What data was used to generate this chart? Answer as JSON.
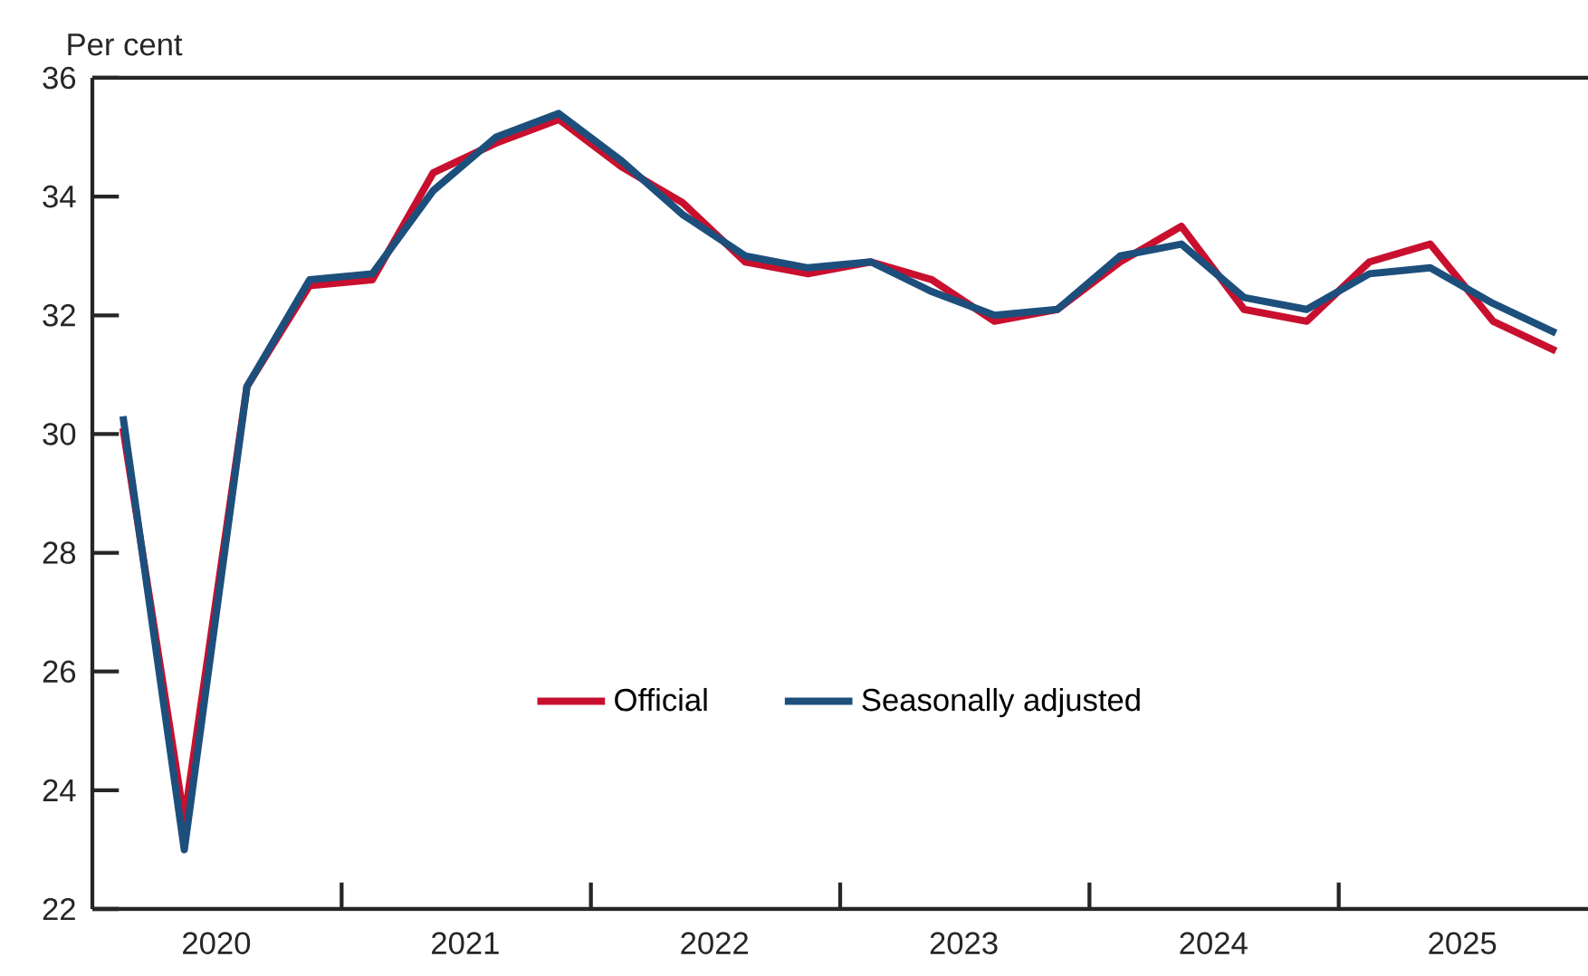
{
  "chart_data": {
    "type": "line",
    "ylabel": "Per cent",
    "x": [
      "2020-02-15",
      "2020-05-15",
      "2020-08-15",
      "2020-11-15",
      "2021-02-15",
      "2021-05-15",
      "2021-08-15",
      "2021-11-15",
      "2022-02-15",
      "2022-05-15",
      "2022-08-15",
      "2022-11-15",
      "2023-02-15",
      "2023-05-15",
      "2023-08-15",
      "2023-11-15",
      "2024-02-15",
      "2024-05-15",
      "2024-08-15",
      "2024-11-15",
      "2025-02-15",
      "2025-05-15",
      "2025-08-15",
      "2025-11-15"
    ],
    "series": [
      {
        "name": "Official",
        "color": "#c8102e",
        "values": [
          30.1,
          23.5,
          30.8,
          32.5,
          32.6,
          34.4,
          34.9,
          35.3,
          34.5,
          33.9,
          32.9,
          32.7,
          32.9,
          32.6,
          31.9,
          32.1,
          32.9,
          33.5,
          32.1,
          31.9,
          32.9,
          33.2,
          31.9,
          31.4
        ]
      },
      {
        "name": "Seasonally adjusted",
        "color": "#1d4f7c",
        "values": [
          30.3,
          23.0,
          30.8,
          32.6,
          32.7,
          34.1,
          35.0,
          35.4,
          34.6,
          33.7,
          33.0,
          32.8,
          32.9,
          32.4,
          32.0,
          32.1,
          33.0,
          33.2,
          32.3,
          32.1,
          32.7,
          32.8,
          32.2,
          31.7
        ]
      }
    ],
    "xlim": [
      "2020-01-01",
      "2026-01-01"
    ],
    "xticks": [
      {
        "value": "2020-07-01",
        "label": "2020"
      },
      {
        "value": "2021-01-01",
        "label": null
      },
      {
        "value": "2021-07-01",
        "label": "2021"
      },
      {
        "value": "2022-01-01",
        "label": null
      },
      {
        "value": "2022-07-01",
        "label": "2022"
      },
      {
        "value": "2023-01-01",
        "label": null
      },
      {
        "value": "2023-07-01",
        "label": "2023"
      },
      {
        "value": "2024-01-01",
        "label": null
      },
      {
        "value": "2024-07-01",
        "label": "2024"
      },
      {
        "value": "2025-01-01",
        "label": null
      },
      {
        "value": "2025-07-01",
        "label": "2025"
      }
    ],
    "ylim": [
      22,
      36
    ],
    "yticks": [
      22,
      24,
      26,
      28,
      30,
      32,
      34,
      36
    ],
    "grid": false,
    "legend": "bottom",
    "line_style": "solid",
    "marker": "none"
  }
}
